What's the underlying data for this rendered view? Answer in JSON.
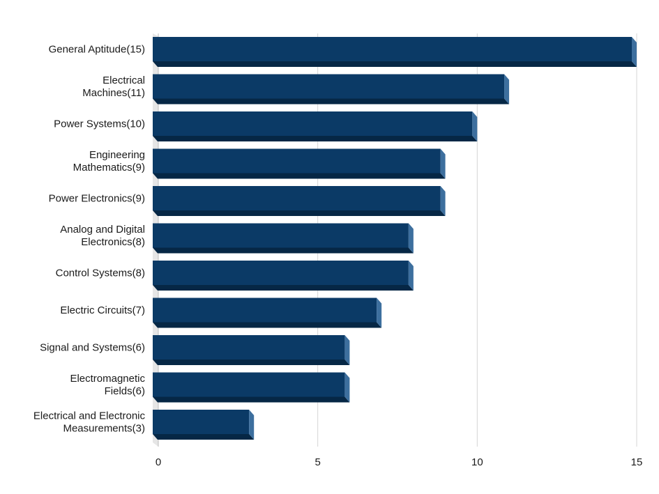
{
  "chart_data": {
    "type": "bar",
    "orientation": "horizontal",
    "style": "3d",
    "categories": [
      "General Aptitude(15)",
      "Electrical Machines(11)",
      "Power Systems(10)",
      "Engineering Mathematics(9)",
      "Power Electronics(9)",
      "Analog and Digital Electronics(8)",
      "Control Systems(8)",
      "Electric Circuits(7)",
      "Signal and Systems(6)",
      "Electromagnetic Fields(6)",
      "Electrical and Electronic Measurements(3)"
    ],
    "values": [
      15,
      11,
      10,
      9,
      9,
      8,
      8,
      7,
      6,
      6,
      3
    ],
    "xlim": [
      0,
      15
    ],
    "xticks": [
      0,
      5,
      10,
      15
    ],
    "grid": true,
    "legend": "none",
    "colors": {
      "bar_front": "#0b3a66",
      "bar_bottom": "#062745",
      "bar_side": "#3d6f9e",
      "grid": "#d4d4d4",
      "floor": "#e6e6e6"
    }
  }
}
